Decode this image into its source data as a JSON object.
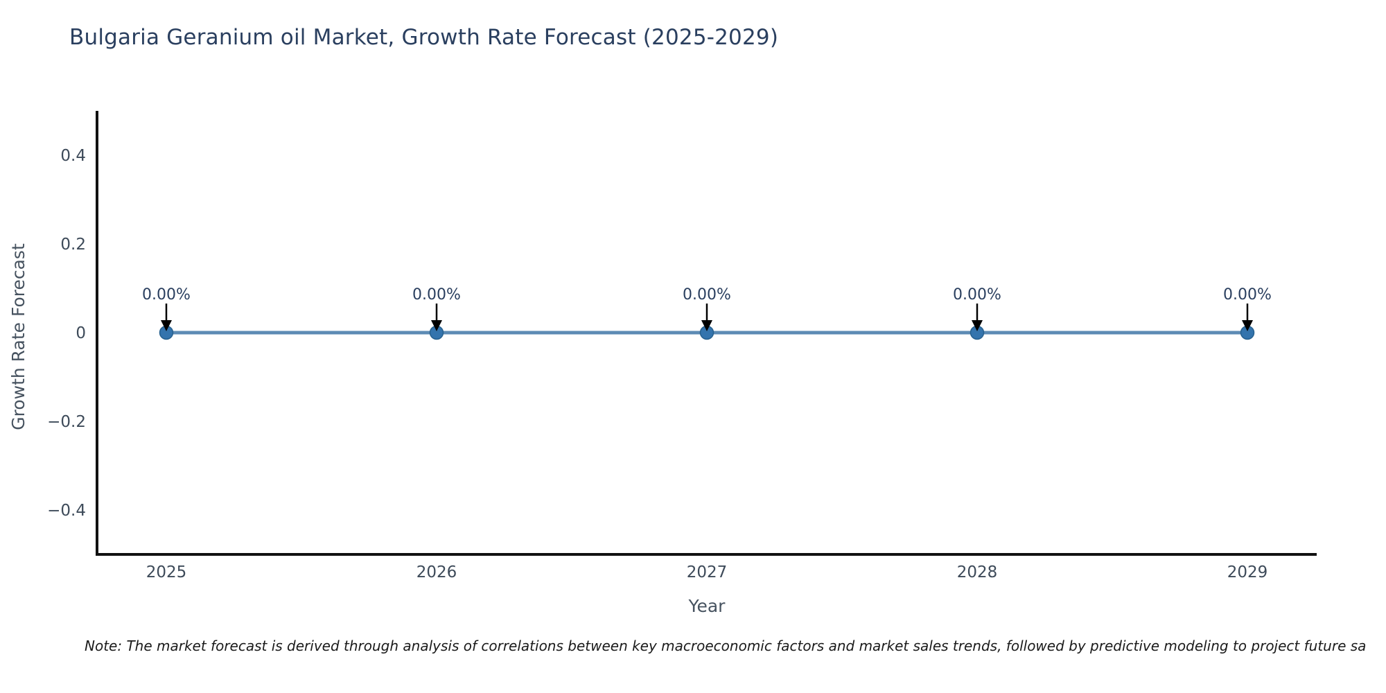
{
  "chart_data": {
    "type": "line",
    "title": "Bulgaria Geranium oil Market, Growth Rate Forecast (2025-2029)",
    "categories": [
      "2025",
      "2026",
      "2027",
      "2028",
      "2029"
    ],
    "values": [
      0,
      0,
      0,
      0,
      0
    ],
    "point_labels": [
      "0.00%",
      "0.00%",
      "0.00%",
      "0.00%",
      "0.00%"
    ],
    "xlabel": "Year",
    "ylabel": "Growth Rate Forecast",
    "ylim": [
      -0.5,
      0.5
    ],
    "yticks": [
      0.4,
      0.2,
      0,
      -0.2,
      -0.4
    ],
    "ytick_labels": [
      "0.4",
      "0.2",
      "0",
      "−0.2",
      "−0.4"
    ],
    "grid": false,
    "legend": "none",
    "colors": {
      "background": "#ffffff",
      "title": "#2a3f5f",
      "axis_title": "#46525f",
      "tick_label": "#3d4a59",
      "axis_line": "#111111",
      "series_line": "#5d8bb4",
      "marker_fill": "#3474ad",
      "marker_edge": "#27618f",
      "annotation_text": "#2a3f5f",
      "annotation_arrow": "#000000"
    }
  },
  "note": "Note: The market forecast is derived through analysis of correlations between key macroeconomic factors and market sales trends, followed by predictive modeling to project future sa"
}
